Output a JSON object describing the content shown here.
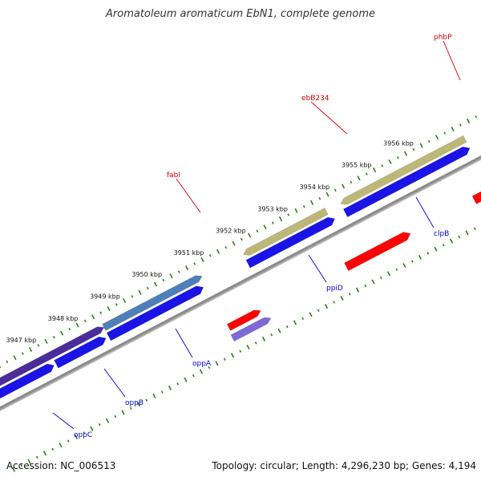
{
  "title": "Aromatoleum aromaticum EbN1, complete genome",
  "footer": {
    "accession": "Accession: NC_006513",
    "info": "Topology: circular; Length: 4,296,230 bp; Genes: 4,194"
  },
  "colors": {
    "backbone": "#8c8c8c",
    "forward_tick": "#2e7d1e",
    "blue_gene": "#1a14e6",
    "red_gene": "#ff0000",
    "olive_gene": "#bdb878",
    "steel_gene": "#4f7fb9",
    "purple_gene": "#4a2c9a",
    "lavender_gene": "#7d69d8",
    "label_red": "#cc0000",
    "label_blue": "#0000cc"
  },
  "position_ticks": [
    {
      "label": "3947 kbp"
    },
    {
      "label": "3948 kbp"
    },
    {
      "label": "3949 kbp"
    },
    {
      "label": "3950 kbp"
    },
    {
      "label": "3951 kbp"
    },
    {
      "label": "3952 kbp"
    },
    {
      "label": "3953 kbp"
    },
    {
      "label": "3954 kbp"
    },
    {
      "label": "3955 kbp"
    },
    {
      "label": "3956 kbp"
    }
  ],
  "gene_labels": [
    {
      "name": "phbP",
      "color": "red"
    },
    {
      "name": "ebB234",
      "color": "red"
    },
    {
      "name": "fabI",
      "color": "red"
    },
    {
      "name": "clpB",
      "color": "blue"
    },
    {
      "name": "ppiD",
      "color": "blue"
    },
    {
      "name": "oppA",
      "color": "blue"
    },
    {
      "name": "oppB",
      "color": "blue"
    },
    {
      "name": "oppC",
      "color": "blue"
    }
  ]
}
